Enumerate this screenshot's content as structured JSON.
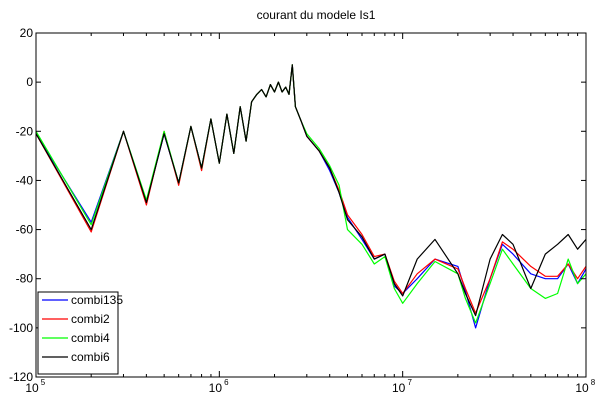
{
  "chart_data": {
    "type": "line",
    "title": "courant du modele Is1",
    "xlabel": "",
    "ylabel": "",
    "x_scale": "log",
    "xlim": [
      100000,
      100000000
    ],
    "ylim": [
      -120,
      20
    ],
    "x_ticks": [
      {
        "base": "10",
        "exp": "5",
        "value": 100000
      },
      {
        "base": "10",
        "exp": "6",
        "value": 1000000
      },
      {
        "base": "10",
        "exp": "7",
        "value": 10000000
      },
      {
        "base": "10",
        "exp": "8",
        "value": 100000000
      }
    ],
    "y_ticks": [
      20,
      0,
      -20,
      -40,
      -60,
      -80,
      -100,
      -120
    ],
    "grid": false,
    "legend_position": "bottom-left",
    "series": [
      {
        "name": "combi135",
        "color": "#0000ff",
        "x": [
          100000,
          200000,
          300000,
          400000,
          500000,
          600000,
          700000,
          800000,
          900000,
          1000000,
          1100000,
          1200000,
          1300000,
          1400000,
          1500000,
          1600000,
          1700000,
          1800000,
          1900000,
          2000000,
          2100000,
          2200000,
          2300000,
          2400000,
          2500000,
          2600000,
          2800000,
          3000000,
          3500000,
          4000000,
          4500000,
          5000000,
          6000000,
          7000000,
          8000000,
          9000000,
          10000000,
          12000000,
          15000000,
          20000000,
          22000000,
          25000000,
          30000000,
          35000000,
          40000000,
          50000000,
          60000000,
          70000000,
          80000000,
          90000000,
          100000000
        ],
        "values": [
          -21,
          -57,
          -20,
          -49,
          -21,
          -41,
          -18,
          -35,
          -15,
          -33,
          -13,
          -29,
          -10,
          -24,
          -8,
          -5,
          -3,
          -6,
          -1,
          -4,
          0,
          -4,
          -2,
          -5,
          7,
          -10,
          -16,
          -22,
          -28,
          -36,
          -45,
          -55,
          -64,
          -72,
          -70,
          -83,
          -86,
          -80,
          -72,
          -75,
          -85,
          -100,
          -80,
          -66,
          -70,
          -78,
          -80,
          -80,
          -74,
          -82,
          -76
        ]
      },
      {
        "name": "combi2",
        "color": "#ff0000",
        "x": [
          100000,
          200000,
          300000,
          400000,
          500000,
          600000,
          700000,
          800000,
          900000,
          1000000,
          1100000,
          1200000,
          1300000,
          1400000,
          1500000,
          1600000,
          1700000,
          1800000,
          1900000,
          2000000,
          2100000,
          2200000,
          2300000,
          2400000,
          2500000,
          2600000,
          2800000,
          3000000,
          3500000,
          4000000,
          4500000,
          5000000,
          6000000,
          7000000,
          8000000,
          9000000,
          10000000,
          12000000,
          15000000,
          20000000,
          22000000,
          25000000,
          30000000,
          35000000,
          40000000,
          50000000,
          60000000,
          70000000,
          80000000,
          90000000,
          100000000
        ],
        "values": [
          -21,
          -61,
          -20,
          -50,
          -20,
          -42,
          -18,
          -36,
          -15,
          -33,
          -13,
          -29,
          -10,
          -24,
          -8,
          -5,
          -3,
          -6,
          -1,
          -4,
          0,
          -4,
          -2,
          -5,
          7,
          -10,
          -16,
          -22,
          -28,
          -35,
          -44,
          -54,
          -62,
          -71,
          -70,
          -81,
          -86,
          -78,
          -72,
          -76,
          -84,
          -94,
          -80,
          -65,
          -68,
          -75,
          -79,
          -79,
          -74,
          -80,
          -75
        ]
      },
      {
        "name": "combi4",
        "color": "#00ff00",
        "x": [
          100000,
          200000,
          300000,
          400000,
          500000,
          600000,
          700000,
          800000,
          900000,
          1000000,
          1100000,
          1200000,
          1300000,
          1400000,
          1500000,
          1600000,
          1700000,
          1800000,
          1900000,
          2000000,
          2100000,
          2200000,
          2300000,
          2400000,
          2500000,
          2600000,
          2800000,
          3000000,
          3500000,
          4000000,
          4500000,
          5000000,
          6000000,
          7000000,
          8000000,
          9000000,
          10000000,
          12000000,
          15000000,
          20000000,
          22000000,
          25000000,
          30000000,
          35000000,
          40000000,
          50000000,
          60000000,
          70000000,
          80000000,
          90000000,
          100000000
        ],
        "values": [
          -20,
          -58,
          -20,
          -48,
          -20,
          -41,
          -18,
          -35,
          -15,
          -33,
          -13,
          -29,
          -10,
          -24,
          -8,
          -5,
          -3,
          -6,
          -1,
          -4,
          0,
          -4,
          -2,
          -5,
          7,
          -10,
          -16,
          -21,
          -27,
          -34,
          -42,
          -60,
          -66,
          -74,
          -71,
          -84,
          -90,
          -82,
          -73,
          -78,
          -88,
          -98,
          -82,
          -68,
          -74,
          -84,
          -88,
          -86,
          -72,
          -82,
          -78
        ]
      },
      {
        "name": "combi6",
        "color": "#000000",
        "x": [
          100000,
          200000,
          300000,
          400000,
          500000,
          600000,
          700000,
          800000,
          900000,
          1000000,
          1100000,
          1200000,
          1300000,
          1400000,
          1500000,
          1600000,
          1700000,
          1800000,
          1900000,
          2000000,
          2100000,
          2200000,
          2300000,
          2400000,
          2500000,
          2600000,
          2800000,
          3000000,
          3500000,
          4000000,
          4500000,
          5000000,
          6000000,
          7000000,
          8000000,
          9000000,
          10000000,
          12000000,
          15000000,
          20000000,
          22000000,
          25000000,
          30000000,
          35000000,
          40000000,
          50000000,
          60000000,
          70000000,
          80000000,
          90000000,
          100000000
        ],
        "values": [
          -21,
          -60,
          -20,
          -49,
          -21,
          -41,
          -18,
          -35,
          -15,
          -33,
          -13,
          -29,
          -10,
          -24,
          -8,
          -5,
          -3,
          -6,
          -1,
          -4,
          0,
          -4,
          -2,
          -5,
          7,
          -10,
          -16,
          -22,
          -28,
          -35,
          -45,
          -56,
          -63,
          -72,
          -70,
          -82,
          -87,
          -72,
          -64,
          -78,
          -86,
          -95,
          -72,
          -62,
          -66,
          -84,
          -70,
          -66,
          -62,
          -68,
          -64
        ]
      }
    ]
  }
}
